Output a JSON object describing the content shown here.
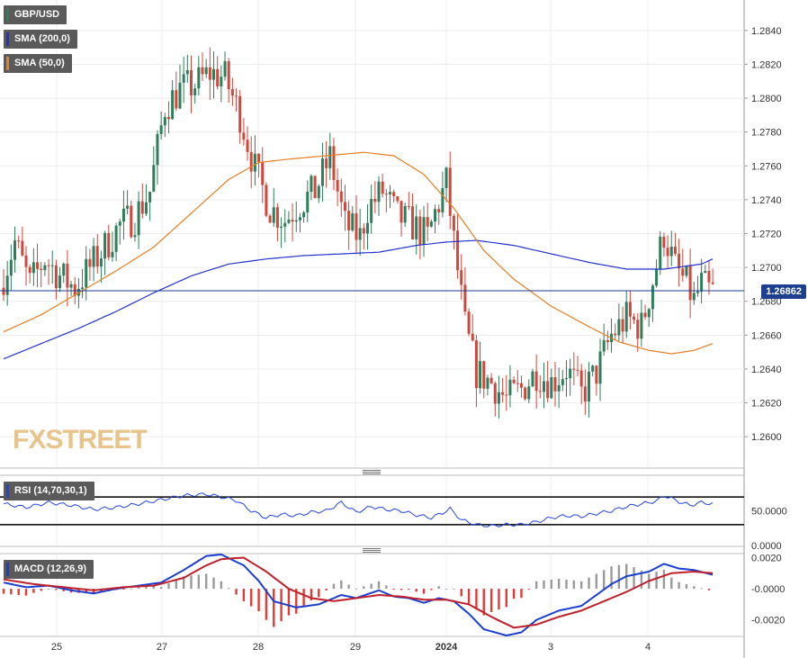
{
  "instrument": "GBP/USD",
  "watermark": "FXSTREET",
  "colors": {
    "up": "#2e7d5b",
    "down": "#d0473c",
    "sma200": "#2233cc",
    "sma50": "#e67e22",
    "price_line": "#1c3f8f",
    "rsi": "#2244dd",
    "macd": "#1a3fd0",
    "signal": "#c0202a",
    "hist_pos": "#9a9a9a",
    "hist_neg": "#e53935",
    "watermark": "#e8c48c"
  },
  "main_legend": [
    {
      "label": "GBP/USD",
      "color": "#2e7d5b"
    },
    {
      "label": "SMA (200,0)",
      "color": "#2233cc"
    },
    {
      "label": "SMA (50,0)",
      "color": "#e67e22"
    }
  ],
  "rsi_legend": "RSI (14,70,30,1)",
  "macd_legend": "MACD (12,26,9)",
  "last_price": "1.26862",
  "chart_data": [
    {
      "type": "candlestick",
      "title": "GBP/USD",
      "x_labels": [
        "25",
        "27",
        "28",
        "29",
        "2024",
        "3",
        "4"
      ],
      "y_ticks": [
        "1.2840",
        "1.2820",
        "1.2800",
        "1.2780",
        "1.2760",
        "1.2740",
        "1.2720",
        "1.2700",
        "1.2680",
        "1.2660",
        "1.2640",
        "1.2620",
        "1.2600"
      ],
      "ylim": [
        1.2582,
        1.2858
      ],
      "last_price": 1.26862,
      "anchors": [
        [
          0,
          1.2688
        ],
        [
          4,
          1.2715
        ],
        [
          8,
          1.269
        ],
        [
          12,
          1.2705
        ],
        [
          16,
          1.2695
        ],
        [
          20,
          1.2688
        ],
        [
          24,
          1.27
        ],
        [
          28,
          1.2712
        ],
        [
          32,
          1.2725
        ],
        [
          36,
          1.273
        ],
        [
          40,
          1.2745
        ],
        [
          44,
          1.2795
        ],
        [
          48,
          1.2805
        ],
        [
          52,
          1.2808
        ],
        [
          56,
          1.2815
        ],
        [
          60,
          1.2812
        ],
        [
          64,
          1.279
        ],
        [
          68,
          1.2758
        ],
        [
          72,
          1.2735
        ],
        [
          76,
          1.2728
        ],
        [
          80,
          1.2738
        ],
        [
          84,
          1.2745
        ],
        [
          88,
          1.2765
        ],
        [
          92,
          1.2725
        ],
        [
          96,
          1.2718
        ],
        [
          98,
          1.2735
        ],
        [
          102,
          1.2745
        ],
        [
          106,
          1.273
        ],
        [
          110,
          1.2725
        ],
        [
          114,
          1.2718
        ],
        [
          116,
          1.2732
        ],
        [
          119,
          1.275
        ],
        [
          121,
          1.2715
        ],
        [
          124,
          1.2665
        ],
        [
          127,
          1.2638
        ],
        [
          131,
          1.2632
        ],
        [
          135,
          1.2622
        ],
        [
          139,
          1.2628
        ],
        [
          143,
          1.2638
        ],
        [
          147,
          1.2632
        ],
        [
          151,
          1.264
        ],
        [
          155,
          1.2625
        ],
        [
          159,
          1.2638
        ],
        [
          163,
          1.266
        ],
        [
          167,
          1.267
        ],
        [
          171,
          1.2665
        ],
        [
          174,
          1.2692
        ],
        [
          177,
          1.272
        ],
        [
          180,
          1.27
        ],
        [
          183,
          1.269
        ],
        [
          185,
          1.268
        ],
        [
          187,
          1.269
        ],
        [
          189,
          1.2686
        ]
      ],
      "sma50": [
        [
          0,
          1.2662
        ],
        [
          10,
          1.2672
        ],
        [
          20,
          1.2685
        ],
        [
          30,
          1.2698
        ],
        [
          40,
          1.2712
        ],
        [
          50,
          1.2732
        ],
        [
          60,
          1.2752
        ],
        [
          68,
          1.2762
        ],
        [
          76,
          1.2764
        ],
        [
          86,
          1.2766
        ],
        [
          96,
          1.2768
        ],
        [
          104,
          1.2766
        ],
        [
          112,
          1.2755
        ],
        [
          120,
          1.2735
        ],
        [
          128,
          1.271
        ],
        [
          136,
          1.2693
        ],
        [
          146,
          1.2677
        ],
        [
          156,
          1.2665
        ],
        [
          164,
          1.2656
        ],
        [
          172,
          1.2651
        ],
        [
          178,
          1.2649
        ],
        [
          184,
          1.2651
        ],
        [
          189,
          1.2655
        ]
      ],
      "sma200": [
        [
          0,
          1.2646
        ],
        [
          10,
          1.2655
        ],
        [
          20,
          1.2664
        ],
        [
          30,
          1.2674
        ],
        [
          40,
          1.2685
        ],
        [
          50,
          1.2695
        ],
        [
          60,
          1.2702
        ],
        [
          70,
          1.2705
        ],
        [
          80,
          1.2707
        ],
        [
          90,
          1.2708
        ],
        [
          100,
          1.2709
        ],
        [
          110,
          1.2713
        ],
        [
          118,
          1.2715
        ],
        [
          126,
          1.2716
        ],
        [
          136,
          1.2713
        ],
        [
          146,
          1.2708
        ],
        [
          156,
          1.2703
        ],
        [
          166,
          1.2699
        ],
        [
          176,
          1.2699
        ],
        [
          186,
          1.2702
        ],
        [
          189,
          1.2705
        ]
      ]
    },
    {
      "type": "line",
      "title": "RSI (14,70,30,1)",
      "y_ticks": [
        "50.0000",
        "0.0000"
      ],
      "ylim": [
        0,
        100
      ],
      "levels": [
        70,
        30
      ],
      "anchors": [
        [
          0,
          60
        ],
        [
          6,
          55
        ],
        [
          12,
          62
        ],
        [
          18,
          58
        ],
        [
          24,
          52
        ],
        [
          30,
          55
        ],
        [
          36,
          60
        ],
        [
          42,
          66
        ],
        [
          48,
          72
        ],
        [
          54,
          74
        ],
        [
          58,
          70
        ],
        [
          62,
          65
        ],
        [
          66,
          50
        ],
        [
          70,
          40
        ],
        [
          74,
          45
        ],
        [
          78,
          43
        ],
        [
          82,
          48
        ],
        [
          86,
          50
        ],
        [
          90,
          62
        ],
        [
          94,
          48
        ],
        [
          98,
          56
        ],
        [
          102,
          52
        ],
        [
          106,
          50
        ],
        [
          110,
          44
        ],
        [
          114,
          40
        ],
        [
          117,
          47
        ],
        [
          119,
          53
        ],
        [
          122,
          37
        ],
        [
          126,
          30
        ],
        [
          130,
          28
        ],
        [
          134,
          30
        ],
        [
          138,
          30
        ],
        [
          142,
          34
        ],
        [
          146,
          40
        ],
        [
          150,
          43
        ],
        [
          154,
          42
        ],
        [
          158,
          46
        ],
        [
          162,
          50
        ],
        [
          166,
          56
        ],
        [
          170,
          60
        ],
        [
          174,
          64
        ],
        [
          176,
          72
        ],
        [
          178,
          68
        ],
        [
          180,
          63
        ],
        [
          183,
          58
        ],
        [
          186,
          62
        ],
        [
          189,
          60
        ]
      ]
    },
    {
      "type": "line",
      "title": "MACD (12,26,9)",
      "y_ticks": [
        "0.0020",
        "-0.0000",
        "-0.0020"
      ],
      "ylim": [
        -0.003,
        0.0022
      ],
      "macd": [
        [
          0,
          0.0004
        ],
        [
          6,
          0.0001
        ],
        [
          12,
          0.0002
        ],
        [
          18,
          -0.0001
        ],
        [
          24,
          -0.0003
        ],
        [
          30,
          0.0
        ],
        [
          36,
          0.0002
        ],
        [
          42,
          0.0004
        ],
        [
          48,
          0.0012
        ],
        [
          54,
          0.0021
        ],
        [
          58,
          0.0022
        ],
        [
          64,
          0.0015
        ],
        [
          68,
          0.0005
        ],
        [
          72,
          -0.0008
        ],
        [
          78,
          -0.0012
        ],
        [
          84,
          -0.001
        ],
        [
          90,
          -0.0004
        ],
        [
          94,
          -0.0006
        ],
        [
          100,
          -0.0001
        ],
        [
          104,
          -0.0005
        ],
        [
          108,
          -0.0006
        ],
        [
          112,
          -0.0009
        ],
        [
          116,
          -0.0006
        ],
        [
          120,
          -0.0008
        ],
        [
          124,
          -0.0016
        ],
        [
          128,
          -0.0026
        ],
        [
          134,
          -0.003
        ],
        [
          138,
          -0.0028
        ],
        [
          142,
          -0.002
        ],
        [
          148,
          -0.0014
        ],
        [
          154,
          -0.0011
        ],
        [
          158,
          -0.0004
        ],
        [
          162,
          0.0003
        ],
        [
          166,
          0.0008
        ],
        [
          172,
          0.0011
        ],
        [
          176,
          0.0016
        ],
        [
          180,
          0.0013
        ],
        [
          184,
          0.0012
        ],
        [
          189,
          0.0009
        ]
      ],
      "signal": [
        [
          0,
          0.0006
        ],
        [
          8,
          0.0003
        ],
        [
          16,
          0.0001
        ],
        [
          24,
          -0.0001
        ],
        [
          32,
          0.0001
        ],
        [
          40,
          0.0002
        ],
        [
          48,
          0.0007
        ],
        [
          54,
          0.0015
        ],
        [
          58,
          0.0019
        ],
        [
          64,
          0.002
        ],
        [
          70,
          0.0011
        ],
        [
          76,
          0.0
        ],
        [
          82,
          -0.0006
        ],
        [
          88,
          -0.0008
        ],
        [
          94,
          -0.0006
        ],
        [
          100,
          -0.0004
        ],
        [
          106,
          -0.0005
        ],
        [
          112,
          -0.0007
        ],
        [
          118,
          -0.0007
        ],
        [
          124,
          -0.001
        ],
        [
          130,
          -0.0018
        ],
        [
          136,
          -0.0025
        ],
        [
          142,
          -0.0023
        ],
        [
          148,
          -0.0018
        ],
        [
          154,
          -0.0014
        ],
        [
          160,
          -0.0008
        ],
        [
          166,
          -0.0002
        ],
        [
          172,
          0.0005
        ],
        [
          178,
          0.001
        ],
        [
          184,
          0.0011
        ],
        [
          189,
          0.001
        ]
      ]
    }
  ]
}
